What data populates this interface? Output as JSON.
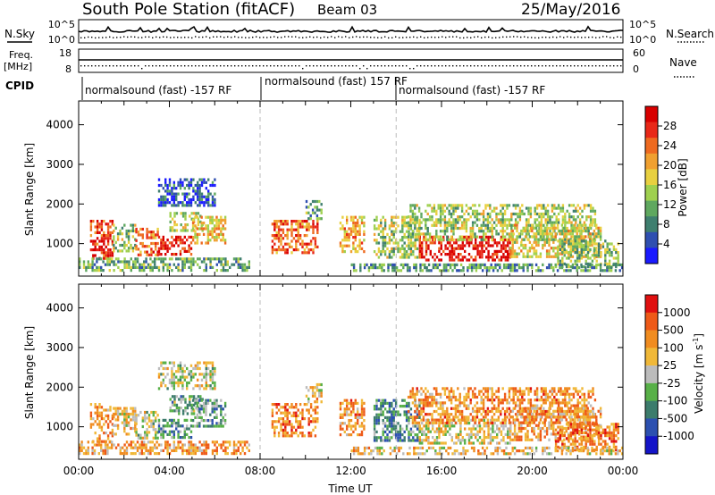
{
  "header": {
    "title": "South Pole Station (fitACF)",
    "beam": "Beam 03",
    "date": "25/May/2016"
  },
  "top_panels": {
    "nsky_label": "N.Sky",
    "nsearch_label": "N.Search",
    "noise_ticks_left": [
      "10^5",
      "10^0"
    ],
    "noise_ticks_right": [
      "10^5",
      "10^0"
    ],
    "freq_label_1": "Freq.",
    "freq_label_2": "[MHz]",
    "freq_ticks": [
      "18",
      "8"
    ],
    "nave_label": "Nave",
    "nave_ticks": [
      "60",
      "0"
    ],
    "cpid_label": "CPID",
    "cpid_segments": [
      {
        "text": "normalsound (fast) -157 RF",
        "start_hour": 0
      },
      {
        "text": "normalsound (fast) 157 RF",
        "start_hour": 8
      },
      {
        "text": "normalsound (fast) -157 RF",
        "start_hour": 14
      }
    ]
  },
  "chart_data": [
    {
      "type": "heatmap",
      "name": "power",
      "ylabel": "Slant Range [km]",
      "x_range_hours": [
        0,
        24
      ],
      "ylim": [
        180,
        4600
      ],
      "yticks": [
        1000,
        2000,
        3000,
        4000
      ],
      "colorbar": {
        "label": "Power [dB]",
        "ticks": [
          "4",
          "8",
          "12",
          "16",
          "20",
          "24",
          "28"
        ],
        "colors": [
          "#1a1aff",
          "#2f4fb0",
          "#3f7f6f",
          "#5fa85f",
          "#9fd04f",
          "#e8d040",
          "#f0a030",
          "#ee6a20",
          "#e82818",
          "#d80000"
        ],
        "range": [
          0,
          32
        ]
      },
      "echo_regions": [
        {
          "x": [
            0.5,
            1.5
          ],
          "y": [
            600,
            1600
          ],
          "level": 0.85
        },
        {
          "x": [
            1.5,
            2.5
          ],
          "y": [
            800,
            1500
          ],
          "level": 0.45
        },
        {
          "x": [
            2.5,
            3.5
          ],
          "y": [
            750,
            1400
          ],
          "level": 0.75
        },
        {
          "x": [
            3.5,
            5
          ],
          "y": [
            700,
            1200
          ],
          "level": 0.9
        },
        {
          "x": [
            4,
            5.5
          ],
          "y": [
            1300,
            1800
          ],
          "level": 0.5
        },
        {
          "x": [
            5,
            6.5
          ],
          "y": [
            1000,
            1700
          ],
          "level": 0.6
        },
        {
          "x": [
            3.5,
            6
          ],
          "y": [
            1950,
            2650
          ],
          "level": 0.15
        },
        {
          "x": [
            0,
            7.5
          ],
          "y": [
            300,
            650
          ],
          "level": 0.35
        },
        {
          "x": [
            8.5,
            10.5
          ],
          "y": [
            800,
            1600
          ],
          "level": 0.75
        },
        {
          "x": [
            10,
            10.7
          ],
          "y": [
            1600,
            2100
          ],
          "level": 0.35
        },
        {
          "x": [
            11.5,
            12.6
          ],
          "y": [
            800,
            1700
          ],
          "level": 0.65
        },
        {
          "x": [
            13,
            15
          ],
          "y": [
            650,
            1700
          ],
          "level": 0.45
        },
        {
          "x": [
            15,
            19
          ],
          "y": [
            600,
            1200
          ],
          "level": 0.92
        },
        {
          "x": [
            14.5,
            22.8
          ],
          "y": [
            1100,
            2000
          ],
          "level": 0.45
        },
        {
          "x": [
            19,
            23
          ],
          "y": [
            700,
            1500
          ],
          "level": 0.55
        },
        {
          "x": [
            21,
            23.8
          ],
          "y": [
            450,
            1100
          ],
          "level": 0.4
        },
        {
          "x": [
            12,
            24
          ],
          "y": [
            300,
            500
          ],
          "level": 0.3
        }
      ]
    },
    {
      "type": "heatmap",
      "name": "velocity",
      "ylabel": "Slant Range [km]",
      "xlabel": "Time UT",
      "x_range_hours": [
        0,
        24
      ],
      "xtick_labels": [
        "00:00",
        "04:00",
        "08:00",
        "12:00",
        "16:00",
        "20:00",
        "00:00"
      ],
      "ylim": [
        180,
        4600
      ],
      "yticks": [
        1000,
        2000,
        3000,
        4000
      ],
      "colorbar": {
        "label": "Velocity [m s^-1]",
        "ticks": [
          "1000",
          "500",
          "100",
          "25",
          "-25",
          "-100",
          "-500",
          "-1000"
        ],
        "colors": [
          "#1414c8",
          "#2c50b0",
          "#3c7c6c",
          "#58b048",
          "#bcbcbc",
          "#f0b838",
          "#f08c20",
          "#ee5a18",
          "#e01010"
        ]
      },
      "echo_regions": [
        {
          "x": [
            0.5,
            1.5
          ],
          "y": [
            600,
            1600
          ],
          "level": 0.7
        },
        {
          "x": [
            1.5,
            2.5
          ],
          "y": [
            800,
            1500
          ],
          "level": 0.6
        },
        {
          "x": [
            2.5,
            3.5
          ],
          "y": [
            750,
            1400
          ],
          "level": 0.5
        },
        {
          "x": [
            3.5,
            5
          ],
          "y": [
            700,
            1200
          ],
          "level": 0.35
        },
        {
          "x": [
            4,
            5.5
          ],
          "y": [
            1300,
            1800
          ],
          "level": 0.4
        },
        {
          "x": [
            5,
            6.5
          ],
          "y": [
            1000,
            1700
          ],
          "level": 0.35
        },
        {
          "x": [
            3.5,
            6
          ],
          "y": [
            1950,
            2650
          ],
          "level": 0.5
        },
        {
          "x": [
            0,
            7.5
          ],
          "y": [
            300,
            650
          ],
          "level": 0.7
        },
        {
          "x": [
            8.5,
            10.5
          ],
          "y": [
            800,
            1600
          ],
          "level": 0.75
        },
        {
          "x": [
            10,
            10.7
          ],
          "y": [
            1600,
            2100
          ],
          "level": 0.6
        },
        {
          "x": [
            11.5,
            12.6
          ],
          "y": [
            800,
            1700
          ],
          "level": 0.72
        },
        {
          "x": [
            13,
            15
          ],
          "y": [
            650,
            1700
          ],
          "level": 0.3
        },
        {
          "x": [
            15,
            19
          ],
          "y": [
            600,
            1200
          ],
          "level": 0.55
        },
        {
          "x": [
            14.5,
            22.8
          ],
          "y": [
            1100,
            2000
          ],
          "level": 0.72
        },
        {
          "x": [
            19,
            23
          ],
          "y": [
            700,
            1500
          ],
          "level": 0.68
        },
        {
          "x": [
            21,
            23.8
          ],
          "y": [
            450,
            1100
          ],
          "level": 0.75
        },
        {
          "x": [
            12,
            24
          ],
          "y": [
            300,
            500
          ],
          "level": 0.6
        }
      ]
    }
  ]
}
